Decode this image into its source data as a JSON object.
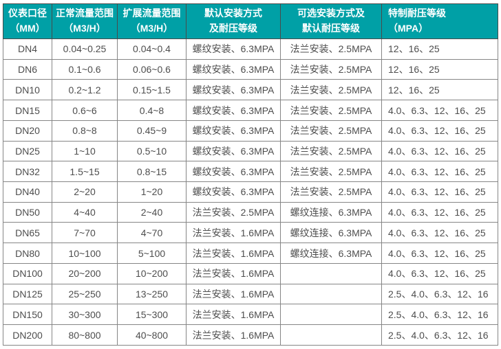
{
  "table": {
    "headers": [
      "仪表口径\n（MM）",
      "正常流量范围\n（M3/H）",
      "扩展流量范围\n（M3/H）",
      "默认安装方式\n及耐压等级",
      "可选安装方式及\n默认耐压等级",
      "特制耐压等级\n（MPA）"
    ]
  },
  "colors": {
    "header_bg": "#00a0a6",
    "header_text": "#ffffff",
    "body_text": "#4d4d4d",
    "grid_line": "#858585",
    "outer_border": "#3c3c3c"
  },
  "chart_data": {
    "type": "table",
    "columns": [
      "仪表口径（MM）",
      "正常流量范围（M3/H）",
      "扩展流量范围（M3/H）",
      "默认安装方式及耐压等级",
      "可选安装方式及默认耐压等级",
      "特制耐压等级（MPA）"
    ],
    "rows": [
      [
        "DN4",
        "0.04~0.25",
        "0.04~0.4",
        "螺纹安装、6.3MPA",
        "法兰安装、2.5MPA",
        "12、16、25"
      ],
      [
        "DN6",
        "0.1~0.6",
        "0.06~0.6",
        "螺纹安装、6.3MPA",
        "法兰安装、2.5MPA",
        "12、16、25"
      ],
      [
        "DN10",
        "0.2~1.2",
        "0.15~1.5",
        "螺纹安装、6.3MPA",
        "法兰安装、2.5MPA",
        "12、16、25"
      ],
      [
        "DN15",
        "0.6~6",
        "0.4~8",
        "螺纹安装、6.3MPA",
        "法兰安装、2.5MPA",
        "4.0、6.3、12、16、25"
      ],
      [
        "DN20",
        "0.8~8",
        "0.45~9",
        "螺纹安装、6.3MPA",
        "法兰安装、2.5MPA",
        "4.0、6.3、12、16、25"
      ],
      [
        "DN25",
        "1~10",
        "0.5~10",
        "螺纹安装、6.3MPA",
        "法兰安装、2.5MPA",
        "4.0、6.3、12、16、25"
      ],
      [
        "DN32",
        "1.5~15",
        "0.8~15",
        "螺纹安装、6.3MPA",
        "法兰安装、2.5MPA",
        "4.0、6.3、12、16、25"
      ],
      [
        "DN40",
        "2~20",
        "1~20",
        "螺纹安装、6.3MPA",
        "法兰安装、2.5MPA",
        "4.0、6.3、12、16、25"
      ],
      [
        "DN50",
        "4~40",
        "2~40",
        "法兰安装、2.5MPA",
        "螺纹连接、6.3MPA",
        "4.0、6.3、12、16、25"
      ],
      [
        "DN65",
        "7~70",
        "4~70",
        "法兰安装、1.6MPA",
        "螺纹连接、6.3MPA",
        "4.0、6.3、12、16、25"
      ],
      [
        "DN80",
        "10~100",
        "5~100",
        "法兰安装、1.6MPA",
        "螺纹连接、6.3MPA",
        "4.0、6.3、12、16、25"
      ],
      [
        "DN100",
        "20~200",
        "10~200",
        "法兰安装、1.6MPA",
        "",
        "4.0、6.3、12、16、25"
      ],
      [
        "DN125",
        "25~250",
        "13~250",
        "法兰安装、1.6MPA",
        "",
        "2.5、4.0、6.3、12、16"
      ],
      [
        "DN150",
        "30~300",
        "15~300",
        "法兰安装、1.6MPA",
        "",
        "2.5、4.0、6.3、12、16"
      ],
      [
        "DN200",
        "80~800",
        "40~800",
        "法兰安装、1.6MPA",
        "",
        "2.5、4.0、6.3、12、16"
      ]
    ]
  }
}
